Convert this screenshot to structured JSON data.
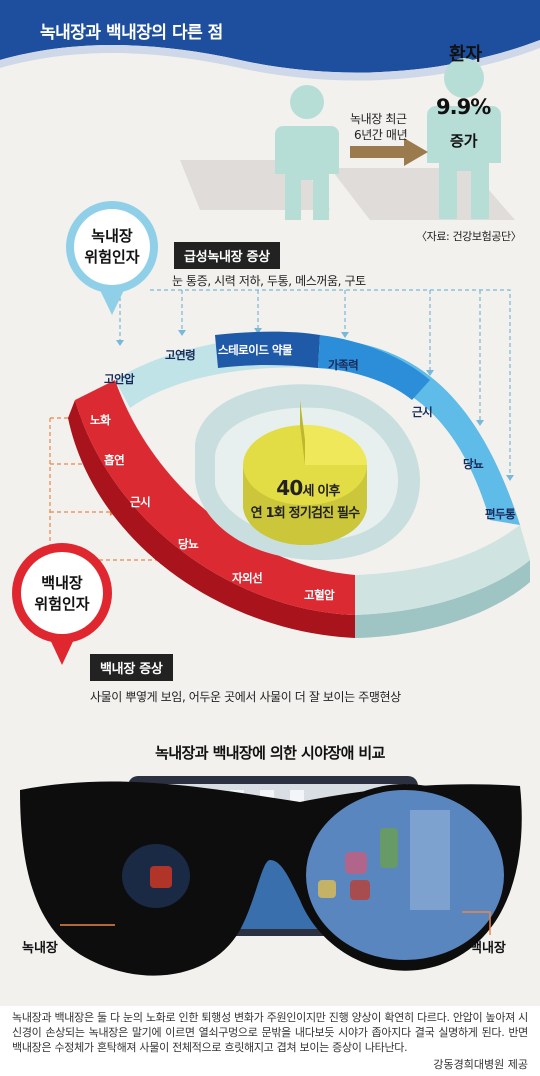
{
  "header": {
    "title": "녹내장과 백내장의 다른 점",
    "band_color": "#1d4f9e"
  },
  "stat": {
    "patient_label": "환자",
    "arrow_text_line1": "녹내장 최근",
    "arrow_text_line2": "6년간 매년",
    "percent": "9.9%",
    "increase": "증가",
    "source": "〈자료: 건강보험공단〉",
    "figure_color": "#b7ddd7",
    "arrow_color": "#9b7a4e"
  },
  "glaucoma": {
    "pin_line1": "녹내장",
    "pin_line2": "위험인자",
    "pin_color": "#8fd0e8",
    "symptom_title": "급성녹내장 증상",
    "symptoms": "눈 통증, 시력 저하, 두통, 메스꺼움, 구토",
    "risk_factors": [
      "고안압",
      "고연령",
      "스테로이드 약물",
      "가족력",
      "근시",
      "당뇨",
      "편두통"
    ]
  },
  "cataract": {
    "pin_line1": "백내장",
    "pin_line2": "위험인자",
    "pin_color": "#e0262e",
    "symptom_title": "백내장 증상",
    "symptoms": "사물이 뿌옇게 보임, 어두운 곳에서 사물이 더 잘 보이는 주맹현상",
    "risk_factors": [
      "노화",
      "흡연",
      "근시",
      "당뇨",
      "자외선",
      "고혈압"
    ]
  },
  "center": {
    "age": "40",
    "age_suffix": "세 이후",
    "line2": "연 1회 정기검진 필수"
  },
  "comparison": {
    "title": "녹내장과 백내장에 의한 시야장애 비교",
    "left_label": "녹내장",
    "right_label": "백내장"
  },
  "footer": {
    "text": "녹내장과 백내장은 둘 다 눈의 노화로 인한 퇴행성 변화가 주원인이지만 진행 양상이 확연히 다르다. 안압이 높아져 시신경이 손상되는 녹내장은 말기에 이르면 열쇠구멍으로 문밖을 내다보듯 시야가 좁아지다 결국 실명하게 된다. 반면 백내장은 수정체가 혼탁해져 사물이 전체적으로 흐릿해지고 겹쳐 보이는 증상이 나타난다.",
    "credit": "강동경희대병원 제공"
  }
}
